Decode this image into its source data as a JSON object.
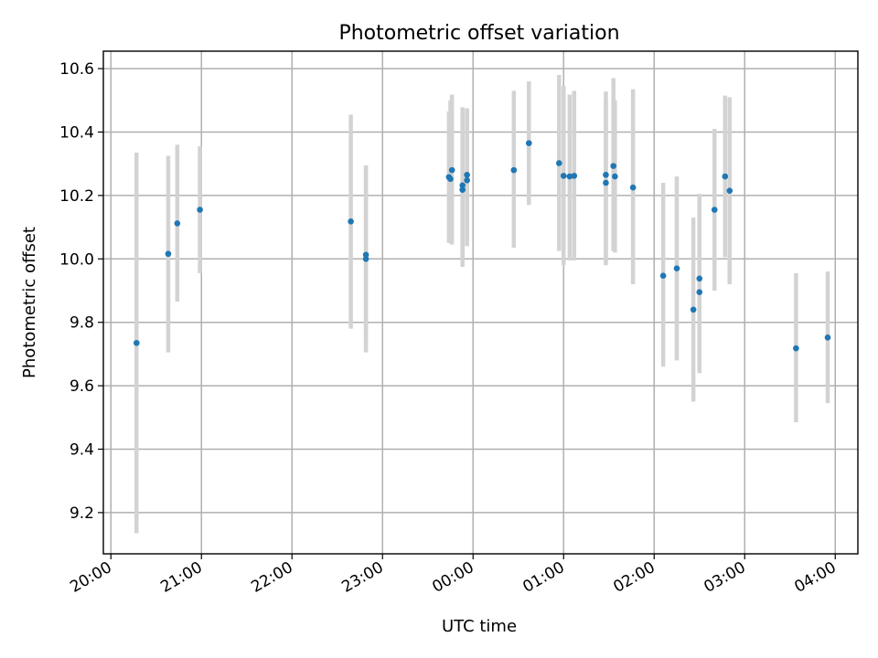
{
  "chart_data": {
    "type": "scatter",
    "title": "Photometric offset variation",
    "xlabel": "UTC time",
    "ylabel": "Photometric offset",
    "x_unit": "time (HH:MM, UTC, spanning midnight)",
    "xlim": [
      "19:55",
      "04:15"
    ],
    "ylim": [
      9.07,
      10.655
    ],
    "x_ticks": [
      "20:00",
      "21:00",
      "22:00",
      "23:00",
      "00:00",
      "01:00",
      "02:00",
      "03:00",
      "04:00"
    ],
    "y_ticks": [
      "9.2",
      "9.4",
      "9.6",
      "9.8",
      "10.0",
      "10.2",
      "10.4",
      "10.6"
    ],
    "grid": true,
    "marker_color": "#1f77b4",
    "errorbar_color": "#d3d3d3",
    "points": [
      {
        "t": "20:17",
        "y": 9.735,
        "lo": 9.135,
        "hi": 10.335
      },
      {
        "t": "20:38",
        "y": 10.016,
        "lo": 9.705,
        "hi": 10.325
      },
      {
        "t": "20:44",
        "y": 10.112,
        "lo": 9.865,
        "hi": 10.36
      },
      {
        "t": "20:59",
        "y": 10.155,
        "lo": 9.955,
        "hi": 10.355
      },
      {
        "t": "22:39",
        "y": 10.118,
        "lo": 9.78,
        "hi": 10.455
      },
      {
        "t": "22:49",
        "y": 10.013,
        "lo": 9.735,
        "hi": 10.295
      },
      {
        "t": "22:49",
        "y": 10.0,
        "lo": 9.705,
        "hi": 10.29
      },
      {
        "t": "23:44",
        "y": 10.258,
        "lo": 10.05,
        "hi": 10.465
      },
      {
        "t": "23:45",
        "y": 10.252,
        "lo": 10.05,
        "hi": 10.5
      },
      {
        "t": "23:46",
        "y": 10.28,
        "lo": 10.045,
        "hi": 10.518
      },
      {
        "t": "23:53",
        "y": 10.218,
        "lo": 9.975,
        "hi": 10.475
      },
      {
        "t": "23:53",
        "y": 10.232,
        "lo": 10.0,
        "hi": 10.478
      },
      {
        "t": "23:56",
        "y": 10.265,
        "lo": 10.06,
        "hi": 10.475
      },
      {
        "t": "23:56",
        "y": 10.248,
        "lo": 10.04,
        "hi": 10.465
      },
      {
        "t": "00:27",
        "y": 10.28,
        "lo": 10.035,
        "hi": 10.53
      },
      {
        "t": "00:37",
        "y": 10.365,
        "lo": 10.17,
        "hi": 10.56
      },
      {
        "t": "00:57",
        "y": 10.302,
        "lo": 10.025,
        "hi": 10.58
      },
      {
        "t": "01:00",
        "y": 10.262,
        "lo": 9.98,
        "hi": 10.545
      },
      {
        "t": "01:04",
        "y": 10.26,
        "lo": 9.995,
        "hi": 10.518
      },
      {
        "t": "01:07",
        "y": 10.262,
        "lo": 9.995,
        "hi": 10.53
      },
      {
        "t": "01:28",
        "y": 10.265,
        "lo": 10.0,
        "hi": 10.528
      },
      {
        "t": "01:28",
        "y": 10.24,
        "lo": 9.98,
        "hi": 10.5
      },
      {
        "t": "01:33",
        "y": 10.293,
        "lo": 10.025,
        "hi": 10.57
      },
      {
        "t": "01:34",
        "y": 10.26,
        "lo": 10.02,
        "hi": 10.5
      },
      {
        "t": "01:46",
        "y": 10.225,
        "lo": 9.92,
        "hi": 10.535
      },
      {
        "t": "02:06",
        "y": 9.947,
        "lo": 9.66,
        "hi": 10.24
      },
      {
        "t": "02:15",
        "y": 9.97,
        "lo": 9.68,
        "hi": 10.26
      },
      {
        "t": "02:26",
        "y": 9.84,
        "lo": 9.55,
        "hi": 10.13
      },
      {
        "t": "02:30",
        "y": 9.938,
        "lo": 9.665,
        "hi": 10.205
      },
      {
        "t": "02:30",
        "y": 9.895,
        "lo": 9.64,
        "hi": 10.2
      },
      {
        "t": "02:40",
        "y": 10.155,
        "lo": 9.9,
        "hi": 10.41
      },
      {
        "t": "02:47",
        "y": 10.26,
        "lo": 10.005,
        "hi": 10.515
      },
      {
        "t": "02:50",
        "y": 10.215,
        "lo": 9.92,
        "hi": 10.51
      },
      {
        "t": "03:34",
        "y": 9.718,
        "lo": 9.485,
        "hi": 9.955
      },
      {
        "t": "03:55",
        "y": 9.752,
        "lo": 9.545,
        "hi": 9.96
      }
    ]
  }
}
